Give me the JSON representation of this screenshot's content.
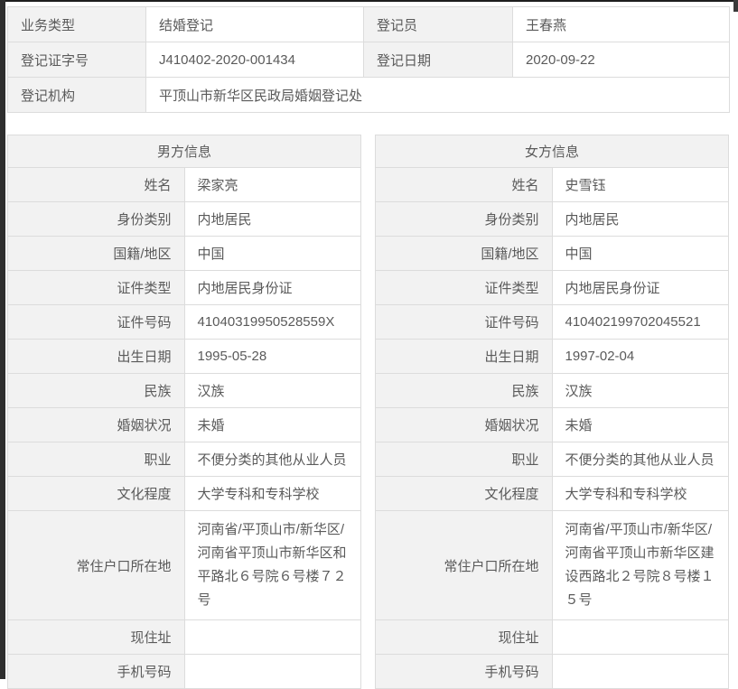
{
  "colors": {
    "label_bg": "#f2f2f2",
    "cell_bg": "#ffffff",
    "border": "#dcdcdc",
    "text": "#5a5a5a",
    "frame_dark": "#2e2e2e"
  },
  "summary": {
    "row1": {
      "label1": "业务类型",
      "value1": "结婚登记",
      "label2": "登记员",
      "value2": "王春燕"
    },
    "row2": {
      "label1": "登记证字号",
      "value1": "J410402-2020-001434",
      "label2": "登记日期",
      "value2": "2020-09-22"
    },
    "row3": {
      "label": "登记机构",
      "value": "平顶山市新华区民政局婚姻登记处"
    }
  },
  "male": {
    "title": "男方信息",
    "fields": [
      {
        "label": "姓名",
        "value": "梁家亮"
      },
      {
        "label": "身份类别",
        "value": "内地居民"
      },
      {
        "label": "国籍/地区",
        "value": "中国"
      },
      {
        "label": "证件类型",
        "value": "内地居民身份证"
      },
      {
        "label": "证件号码",
        "value": "41040319950528559X"
      },
      {
        "label": "出生日期",
        "value": "1995-05-28"
      },
      {
        "label": "民族",
        "value": "汉族"
      },
      {
        "label": "婚姻状况",
        "value": "未婚"
      },
      {
        "label": "职业",
        "value": "不便分类的其他从业人员"
      },
      {
        "label": "文化程度",
        "value": "大学专科和专科学校"
      },
      {
        "label": "常住户口所在地",
        "value": "河南省/平顶山市/新华区/河南省平顶山市新华区和平路北６号院６号楼７２号"
      },
      {
        "label": "现住址",
        "value": ""
      },
      {
        "label": "手机号码",
        "value": ""
      }
    ]
  },
  "female": {
    "title": "女方信息",
    "fields": [
      {
        "label": "姓名",
        "value": "史雪钰"
      },
      {
        "label": "身份类别",
        "value": "内地居民"
      },
      {
        "label": "国籍/地区",
        "value": "中国"
      },
      {
        "label": "证件类型",
        "value": "内地居民身份证"
      },
      {
        "label": "证件号码",
        "value": "410402199702045521"
      },
      {
        "label": "出生日期",
        "value": "1997-02-04"
      },
      {
        "label": "民族",
        "value": "汉族"
      },
      {
        "label": "婚姻状况",
        "value": "未婚"
      },
      {
        "label": "职业",
        "value": "不便分类的其他从业人员"
      },
      {
        "label": "文化程度",
        "value": "大学专科和专科学校"
      },
      {
        "label": "常住户口所在地",
        "value": "河南省/平顶山市/新华区/河南省平顶山市新华区建设西路北２号院８号楼１５号"
      },
      {
        "label": "现住址",
        "value": ""
      },
      {
        "label": "手机号码",
        "value": ""
      }
    ]
  }
}
